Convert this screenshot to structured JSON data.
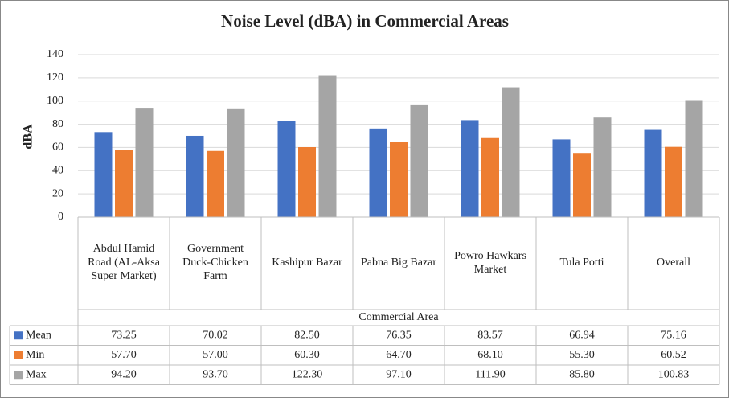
{
  "chart_data": {
    "type": "bar",
    "title": "Noise Level (dBA) in Commercial Areas",
    "y_label": "dBA",
    "x_label": "Commercial Area",
    "categories": [
      "Abdul Hamid Road (AL-Aksa Super Market)",
      "Government Duck-Chicken Farm",
      "Kashipur Bazar",
      "Pabna Big Bazar",
      "Powro Hawkars Market",
      "Tula Potti",
      "Overall"
    ],
    "series": [
      {
        "name": "Mean",
        "color": "#4472c4",
        "values": [
          73.25,
          70.02,
          82.5,
          76.35,
          83.57,
          66.94,
          75.16
        ],
        "value_labels": [
          "73.25",
          "70.02",
          "82.50",
          "76.35",
          "83.57",
          "66.94",
          "75.16"
        ]
      },
      {
        "name": "Min",
        "color": "#ed7d31",
        "values": [
          57.7,
          57,
          60.3,
          64.7,
          68.1,
          55.3,
          60.52
        ],
        "value_labels": [
          "57.70",
          "57.00",
          "60.30",
          "64.70",
          "68.10",
          "55.30",
          "60.52"
        ]
      },
      {
        "name": "Max",
        "color": "#a5a5a5",
        "values": [
          94.2,
          93.7,
          122.3,
          97.1,
          111.9,
          85.8,
          100.83
        ],
        "value_labels": [
          "94.20",
          "93.70",
          "122.30",
          "97.10",
          "111.90",
          "85.80",
          "100.83"
        ]
      }
    ],
    "ylim": [
      0,
      140
    ],
    "yticks": [
      0,
      20,
      40,
      60,
      80,
      100,
      120,
      140
    ],
    "grid": true
  }
}
